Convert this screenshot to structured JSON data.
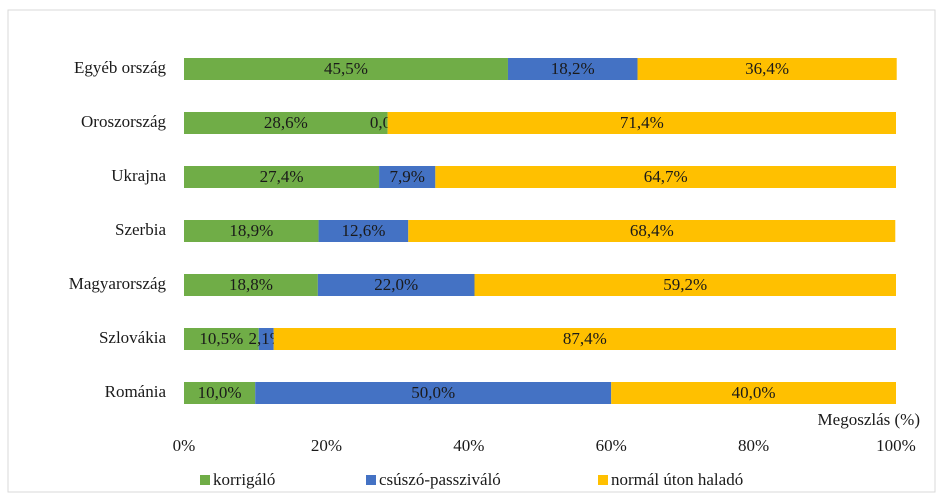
{
  "chart_data": {
    "type": "stacked-barh",
    "categories": [
      "Egyéb ország",
      "Oroszország",
      "Ukrajna",
      "Szerbia",
      "Magyarország",
      "Szlovákia",
      "Románia"
    ],
    "series": [
      {
        "name": "korrigáló",
        "color": "#70ad47",
        "values": [
          45.5,
          28.6,
          27.4,
          18.9,
          18.8,
          10.5,
          10.0
        ],
        "value_labels": [
          "45,5%",
          "28,6%",
          "27,4%",
          "18,9%",
          "18,8%",
          "10,5%",
          "10,0%"
        ]
      },
      {
        "name": "csúszó-passziváló",
        "color": "#4472c4",
        "values": [
          18.2,
          0.0,
          7.9,
          12.6,
          22.0,
          2.1,
          50.0
        ],
        "value_labels": [
          "18,2%",
          "0,0%",
          "7,9%",
          "12,6%",
          "22,0%",
          "2,1%",
          "50,0%"
        ]
      },
      {
        "name": "normál úton haladó",
        "color": "#ffc000",
        "values": [
          36.4,
          71.4,
          64.7,
          68.4,
          59.2,
          87.4,
          40.0
        ],
        "value_labels": [
          "36,4%",
          "71,4%",
          "64,7%",
          "68,4%",
          "59,2%",
          "87,4%",
          "40,0%"
        ]
      }
    ],
    "x_label": "Megoszlás (%)",
    "xlim": [
      0,
      100
    ],
    "xticks": [
      {
        "value": 0,
        "label": "0%"
      },
      {
        "value": 20,
        "label": "20%"
      },
      {
        "value": 40,
        "label": "40%"
      },
      {
        "value": 60,
        "label": "60%"
      },
      {
        "value": 80,
        "label": "80%"
      },
      {
        "value": 100,
        "label": "100%"
      }
    ],
    "grid": false,
    "legend": "bottom"
  }
}
